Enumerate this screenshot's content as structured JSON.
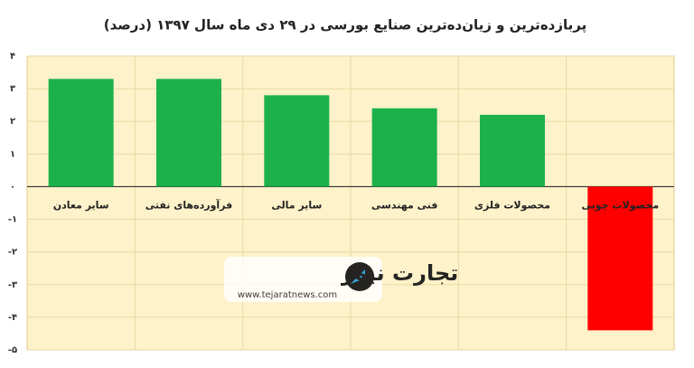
{
  "chart_data": {
    "type": "bar",
    "title": "پربازده‌ترین و زیان‌ده‌ترین صنایع بورسی در ۲۹ دی ماه سال ۱۳۹۷ (درصد)",
    "categories": [
      "سایر معادن",
      "فرآورده‌های نفتی",
      "سایر مالی",
      "فنی مهندسی",
      "محصولات فلزی",
      "محصولات چوبی"
    ],
    "series": [
      {
        "values": [
          3.3,
          3.3,
          2.8,
          2.4,
          2.2,
          -4.4
        ],
        "colors": [
          "#1db14b",
          "#1db14b",
          "#1db14b",
          "#1db14b",
          "#1db14b",
          "#ff0000"
        ]
      }
    ],
    "ylim": [
      -5,
      4
    ],
    "yticks": [
      {
        "value": 4,
        "label": "۴"
      },
      {
        "value": 3,
        "label": "۳"
      },
      {
        "value": 2,
        "label": "۲"
      },
      {
        "value": 1,
        "label": "۱"
      },
      {
        "value": 0,
        "label": "۰"
      },
      {
        "value": -1,
        "label": "-۱"
      },
      {
        "value": -2,
        "label": "-۲"
      },
      {
        "value": -3,
        "label": "-۳"
      },
      {
        "value": -4,
        "label": "-۴"
      },
      {
        "value": -5,
        "label": "-۵"
      }
    ],
    "grid": true,
    "watermark": {
      "brand": "تجارت نیوز",
      "url": "www.tejaratnews.com"
    }
  }
}
